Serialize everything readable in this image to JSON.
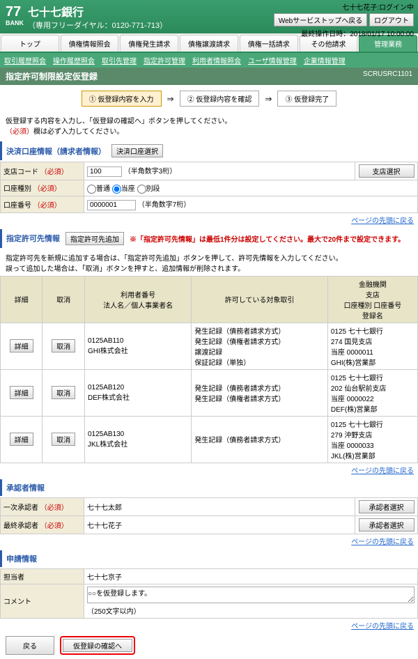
{
  "header": {
    "bankNum": "77",
    "bankSmall": "BANK",
    "bankName": "七十七銀行",
    "dial": "（専用フリーダイヤル：0120-771-713）",
    "userInfo": "七十七花子:ログイン中",
    "btnBack": "Webサービストップへ戻る",
    "btnLogout": "ログアウト",
    "lastOp": "最終操作日時：2018/01/17 10:00:00"
  },
  "tabs": [
    "トップ",
    "債権情報照会",
    "債権発生請求",
    "債権譲渡請求",
    "債権一括請求",
    "その他請求",
    "管理業務"
  ],
  "subtabs": [
    "取引履歴照会",
    "操作履歴照会",
    "取引先管理",
    "指定許可管理",
    "利用者情報照会",
    "ユーザ情報管理",
    "企業情報管理"
  ],
  "pageTitle": "指定許可制限設定仮登録",
  "pageCode": "SCRUSRC1101",
  "steps": [
    "① 仮登録内容を入力",
    "② 仮登録内容を確認",
    "③ 仮登録完了"
  ],
  "note1": "仮登録する内容を入力し、「仮登録の確認へ」ボタンを押してください。",
  "note2a": "（必須）",
  "note2b": "欄は必ず入力してください。",
  "sec1": "決済口座情報（請求者情報）",
  "btnAcct": "決済口座選択",
  "f1": {
    "lbl": "支店コード",
    "val": "100",
    "hint": "（半角数字3桁）",
    "btn": "支店選択"
  },
  "f2": {
    "lbl": "口座種別",
    "opts": [
      "普通",
      "当座",
      "別段"
    ]
  },
  "f3": {
    "lbl": "口座番号",
    "val": "0000001",
    "hint": "（半角数字7桁）"
  },
  "linkTop": "ページの先頭に戻る",
  "sec2": "指定許可先情報",
  "btnAdd": "指定許可先追加",
  "redNote": "※「指定許可先情報」は最低1件分は設定してください。最大で20件まで設定できます。",
  "sec2note1": "指定許可先を新規に追加する場合は、「指定許可先追加」ボタンを押して、許可先情報を入力してください。",
  "sec2note2": "誤って追加した場合は、「取消」ボタンを押すと、追加情報が削除されます。",
  "cols": [
    "詳細",
    "取消",
    "利用者番号\n法人名／個人事業者名",
    "許可している対象取引",
    "金融機関\n支店\n口座種別 口座番号\n登録名"
  ],
  "rows": [
    {
      "id": "0125AB110",
      "corp": "GHI株式会社",
      "tx": "発生記録（債務者請求方式）\n発生記録（債権者請求方式）\n譲渡記録\n保証記録（単独）",
      "bank": "0125 七十七銀行\n274 国見支店\n当座 0000011\nGHI(株)営業部"
    },
    {
      "id": "0125AB120",
      "corp": "DEF株式会社",
      "tx": "発生記録（債務者請求方式）\n発生記録（債権者請求方式）",
      "bank": "0125 七十七銀行\n202 仙台駅前支店\n当座 0000022\nDEF(株)営業部"
    },
    {
      "id": "0125AB130",
      "corp": "JKL株式会社",
      "tx": "発生記録（債務者請求方式）",
      "bank": "0125 七十七銀行\n279 沖野支店\n当座 0000033\nJKL(株)営業部"
    }
  ],
  "btnDetail": "詳細",
  "btnCancel": "取消",
  "sec3": "承認者情報",
  "ap1": {
    "lbl": "一次承認者",
    "val": "七十七太郎",
    "btn": "承認者選択"
  },
  "ap2": {
    "lbl": "最終承認者",
    "val": "七十七花子",
    "btn": "承認者選択"
  },
  "sec4": "申請情報",
  "tantou": {
    "lbl": "担当者",
    "val": "七十七京子"
  },
  "comment": {
    "lbl": "コメント",
    "val": "○○を仮登録します。",
    "hint": "（250文字以内）"
  },
  "btnReturn": "戻る",
  "btnConfirm": "仮登録の確認へ",
  "reqLabel": "（必須）"
}
